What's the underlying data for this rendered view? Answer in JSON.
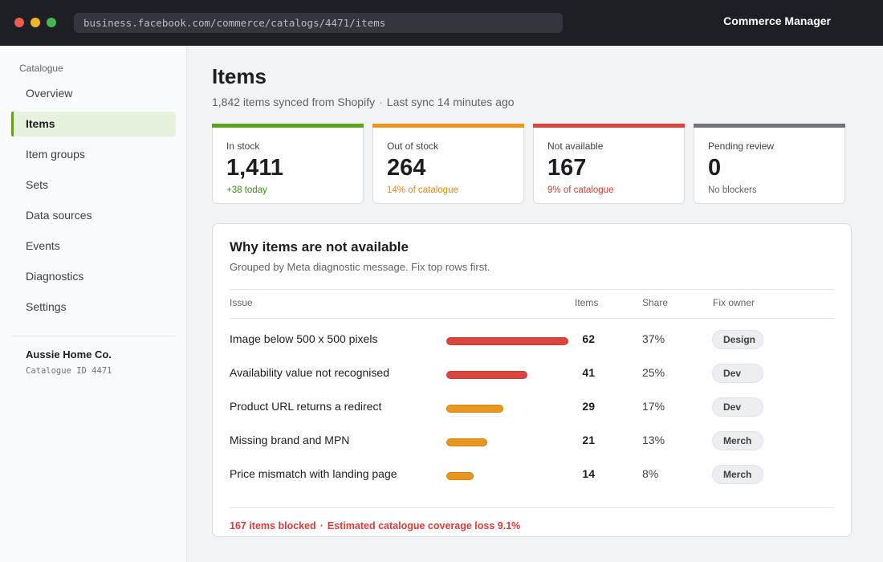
{
  "window": {
    "url": "business.facebook.com/commerce/catalogs/4471/items",
    "app_title": "Commerce Manager"
  },
  "sidebar": {
    "section_label": "Catalogue",
    "items": [
      {
        "label": "Overview"
      },
      {
        "label": "Items",
        "active": true
      },
      {
        "label": "Item groups"
      },
      {
        "label": "Sets"
      },
      {
        "label": "Data sources"
      },
      {
        "label": "Events"
      },
      {
        "label": "Diagnostics"
      },
      {
        "label": "Settings"
      }
    ],
    "account": {
      "name": "Aussie Home Co.",
      "catalogue_id": "Catalogue ID 4471"
    }
  },
  "main": {
    "title": "Items",
    "subtitle": {
      "synced": "1,842 items synced from Shopify",
      "separator": "·",
      "last_sync": "Last sync 14 minutes ago"
    },
    "stats": [
      {
        "label": "In stock",
        "value": "1,411",
        "note": "+38 today",
        "accent": "#5aa51f",
        "note_color": "#3f8a1e"
      },
      {
        "label": "Out of stock",
        "value": "264",
        "note": "14% of catalogue",
        "accent": "#e8961e",
        "note_color": "#e08a14"
      },
      {
        "label": "Not available",
        "value": "167",
        "note": "9% of catalogue",
        "accent": "#d9463e",
        "note_color": "#d43a33"
      },
      {
        "label": "Pending review",
        "value": "0",
        "note": "No blockers",
        "accent": "#6e737c",
        "note_color": "#5f6368"
      }
    ],
    "panel": {
      "title": "Why items are not available",
      "subtitle": "Grouped by Meta diagnostic message. Fix top rows first.",
      "columns": {
        "issue": "Issue",
        "items": "Items",
        "share": "Share",
        "owner": "Fix owner"
      },
      "rows": [
        {
          "issue": "Image below 500 x 500 pixels",
          "items": 62,
          "share": "37%",
          "owner": "Design",
          "bar_color": "#d9463e"
        },
        {
          "issue": "Availability value not recognised",
          "items": 41,
          "share": "25%",
          "owner": "Dev",
          "bar_color": "#d9463e"
        },
        {
          "issue": "Product URL returns a redirect",
          "items": 29,
          "share": "17%",
          "owner": "Dev",
          "bar_color": "#e8961e"
        },
        {
          "issue": "Missing brand and MPN",
          "items": 21,
          "share": "13%",
          "owner": "Merch",
          "bar_color": "#e8961e"
        },
        {
          "issue": "Price mismatch with landing page",
          "items": 14,
          "share": "8%",
          "owner": "Merch",
          "bar_color": "#e8961e"
        }
      ],
      "footer": {
        "blocked": "167 items blocked",
        "separator": "·",
        "loss": "Estimated catalogue coverage loss 9.1%"
      }
    }
  }
}
